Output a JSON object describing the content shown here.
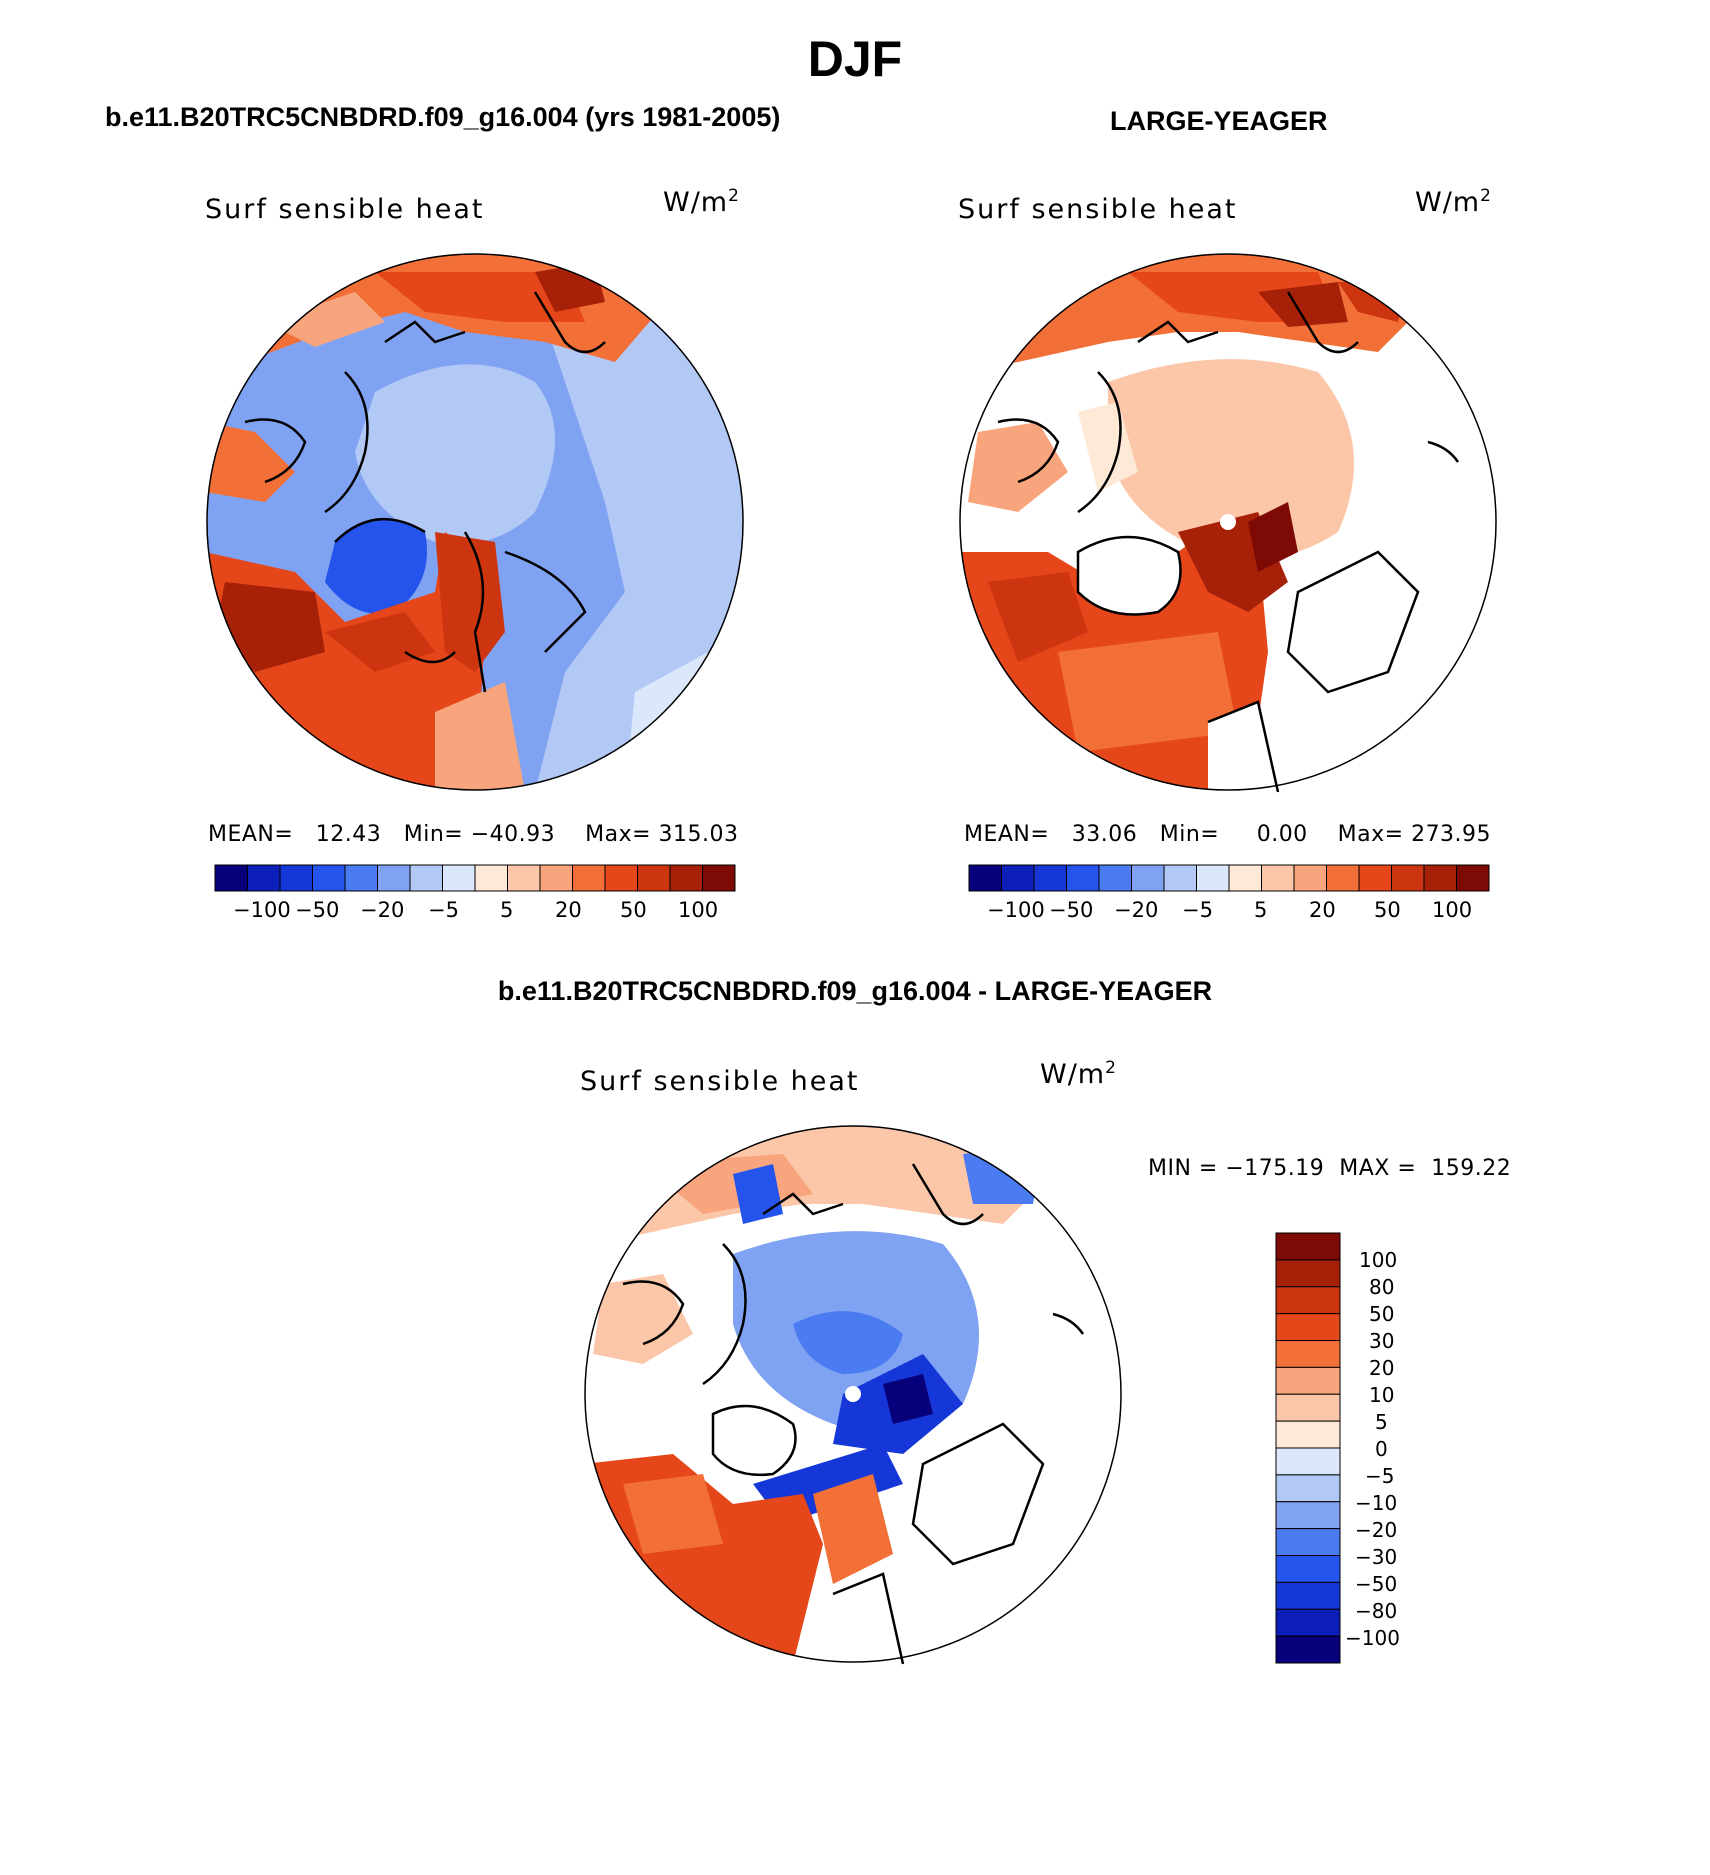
{
  "figure": {
    "title": "DJF",
    "variable": "Surf sensible heat",
    "units": "W/m",
    "units_exp": "2"
  },
  "panels": [
    {
      "title": "b.e11.B20TRC5CNBDRD.f09_g16.004 (yrs 1981-2005)",
      "stats": "MEAN=   12.43   Min= −40.93    Max= 315.03",
      "colorbar_labels": [
        "−100",
        "−50",
        "−20",
        "−5",
        "5",
        "20",
        "50",
        "100"
      ]
    },
    {
      "title": "LARGE-YEAGER",
      "stats": "MEAN=   33.06   Min=     0.00    Max= 273.95",
      "colorbar_labels": [
        "−100",
        "−50",
        "−20",
        "−5",
        "5",
        "20",
        "50",
        "100"
      ]
    },
    {
      "title": "b.e11.B20TRC5CNBDRD.f09_g16.004 - LARGE-YEAGER",
      "stats": "MIN = −175.19  MAX =  159.22",
      "colorbar_labels": [
        "100",
        "80",
        "50",
        "30",
        "20",
        "10",
        "5",
        "0",
        "−5",
        "−10",
        "−20",
        "−30",
        "−50",
        "−80",
        "−100"
      ]
    }
  ],
  "colors": {
    "top_scale": [
      "#08007a",
      "#0c1fb8",
      "#1637d8",
      "#2454ec",
      "#4b7bf0",
      "#7fa3f2",
      "#b2c8f5",
      "#dbe8fb",
      "#fde9d6",
      "#fcc6a8",
      "#f8a47c",
      "#f27038",
      "#e5461a",
      "#cd3510",
      "#a72008",
      "#7d0a04"
    ],
    "diff_scale": [
      "#7d0a04",
      "#a72008",
      "#cd3510",
      "#e5461a",
      "#f27038",
      "#f8a47c",
      "#fcc6a8",
      "#fde9d6",
      "#dbe8fb",
      "#b2c8f5",
      "#7fa3f2",
      "#4b7bf0",
      "#2454ec",
      "#1637d8",
      "#0c1fb8",
      "#08007a"
    ],
    "land": "#ffffff"
  }
}
